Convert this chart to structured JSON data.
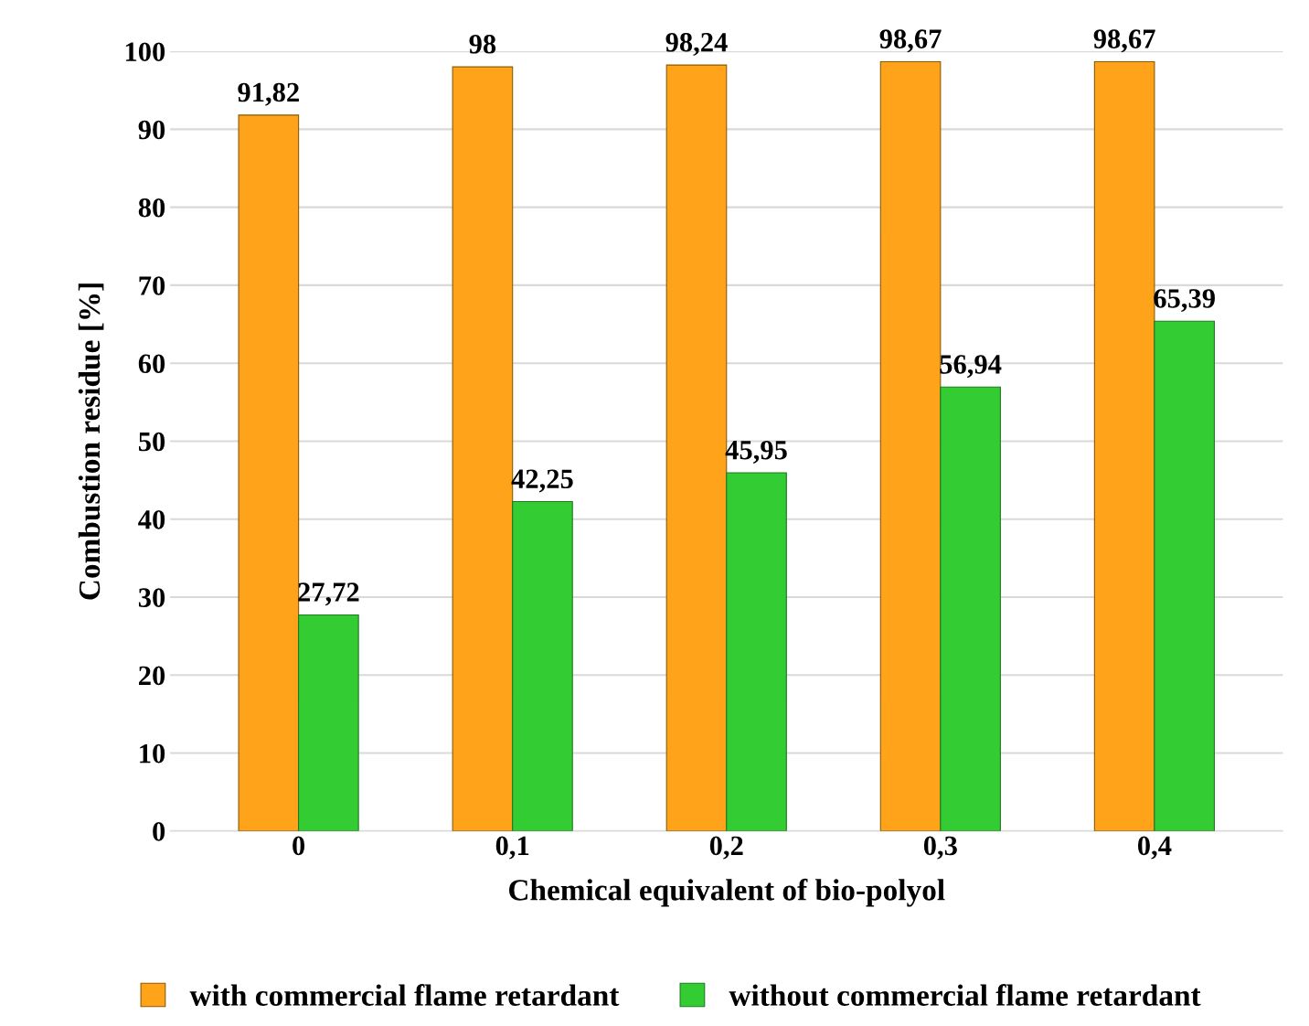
{
  "chart_data": {
    "type": "bar",
    "xlabel": "Chemical equivalent of bio-polyol",
    "ylabel": "Combustion residue [%]",
    "categories": [
      "0",
      "0,1",
      "0,2",
      "0,3",
      "0,4"
    ],
    "series": [
      {
        "name": "with commercial flame retardant",
        "color": "#ffa31a",
        "values": [
          91.82,
          98,
          98.24,
          98.67,
          98.67
        ],
        "value_labels": [
          "91,82",
          "98",
          "98,24",
          "98,67",
          "98,67"
        ]
      },
      {
        "name": "without commercial flame retardant",
        "color": "#33cc33",
        "values": [
          27.72,
          42.25,
          45.95,
          56.94,
          65.39
        ],
        "value_labels": [
          "27,72",
          "42,25",
          "45,95",
          "56,94",
          "65,39"
        ]
      }
    ],
    "ylim": [
      0,
      100
    ],
    "yticks": [
      0,
      10,
      20,
      30,
      40,
      50,
      60,
      70,
      80,
      90,
      100
    ],
    "grid": "y",
    "legend": "bottom"
  }
}
